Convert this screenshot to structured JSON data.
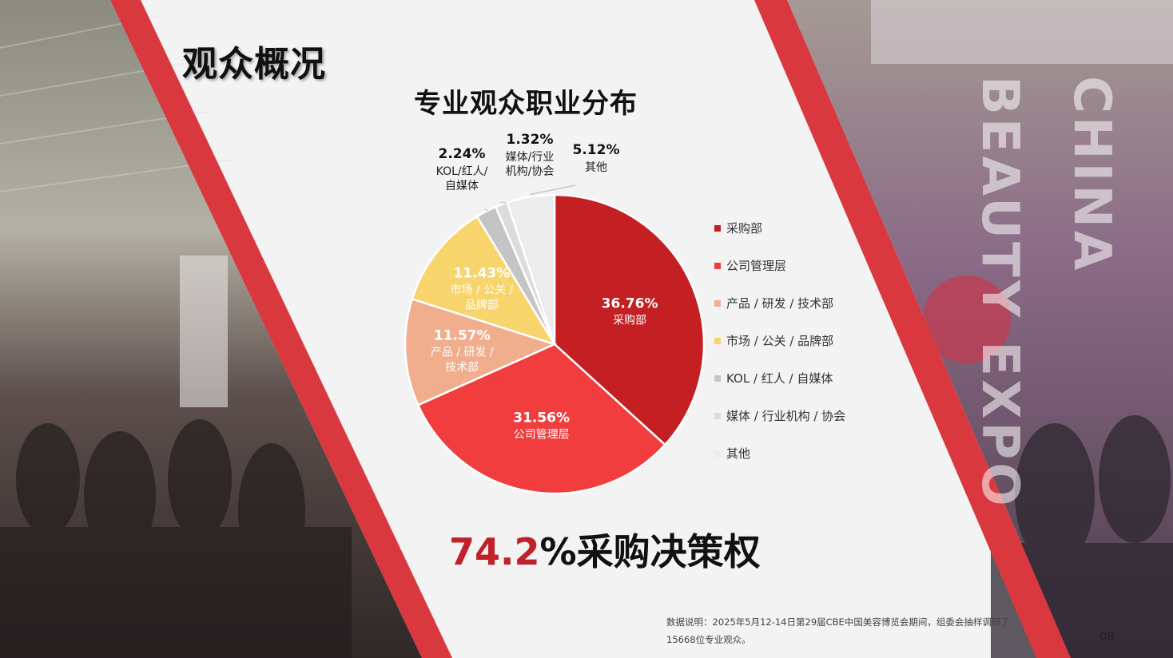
{
  "section_title": "观众概况",
  "chart_title": "专业观众职业分布",
  "headline": {
    "percent": "74.2",
    "rest": "%采购决策权"
  },
  "footnote": "数据说明：2025年5月12-14日第29届CBE中国美容博览会期间，组委会抽样调研了15668位专业观众。",
  "page_number": "08",
  "brand_vertical": {
    "line1": "CHINA",
    "line2": "BEAUTY EXPO"
  },
  "colors": {
    "accent_red": "#d8383e",
    "dark_red": "#c0212a"
  },
  "chart_data": {
    "type": "pie",
    "title": "专业观众职业分布",
    "slices": [
      {
        "label": "采购部",
        "value": 36.76,
        "display": "36.76%",
        "color": "#c41f22",
        "label_inside": [
          "采购部"
        ]
      },
      {
        "label": "公司管理层",
        "value": 31.56,
        "display": "31.56%",
        "color": "#f23d3f",
        "label_inside": [
          "公司管理层"
        ]
      },
      {
        "label": "产品 / 研发 / 技术部",
        "value": 11.57,
        "display": "11.57%",
        "color": "#f0ae8d",
        "label_inside": [
          "产品 / 研发 /",
          "技术部"
        ]
      },
      {
        "label": "市场 / 公关 / 品牌部",
        "value": 11.43,
        "display": "11.43%",
        "color": "#f7d46c",
        "label_inside": [
          "市场 / 公关 /",
          "品牌部"
        ]
      },
      {
        "label": "KOL / 红人 / 自媒体",
        "value": 2.24,
        "display": "2.24%",
        "color": "#c4c4c4",
        "label_outside": [
          "KOL/红人/",
          "自媒体"
        ]
      },
      {
        "label": "媒体 / 行业机构 / 协会",
        "value": 1.32,
        "display": "1.32%",
        "color": "#dcdcdc",
        "label_outside": [
          "媒体/行业",
          "机构/协会"
        ]
      },
      {
        "label": "其他",
        "value": 5.12,
        "display": "5.12%",
        "color": "#ececec",
        "label_outside": [
          "其他"
        ]
      }
    ],
    "legend_position": "right"
  }
}
